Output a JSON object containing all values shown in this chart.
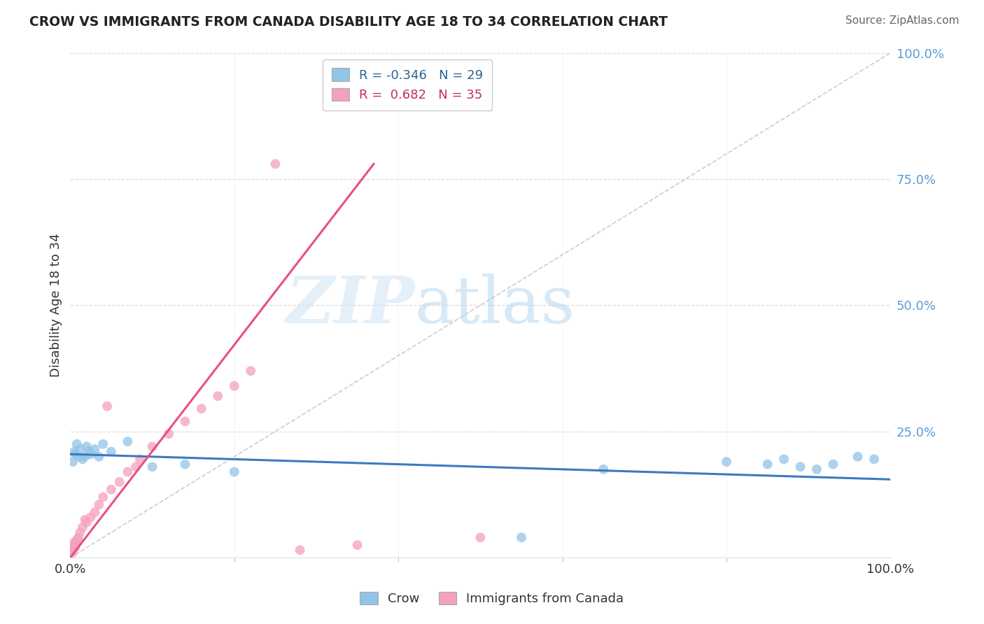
{
  "title": "CROW VS IMMIGRANTS FROM CANADA DISABILITY AGE 18 TO 34 CORRELATION CHART",
  "source": "Source: ZipAtlas.com",
  "ylabel": "Disability Age 18 to 34",
  "legend_crow_R": "-0.346",
  "legend_crow_N": "29",
  "legend_canada_R": "0.682",
  "legend_canada_N": "35",
  "watermark_zip": "ZIP",
  "watermark_atlas": "atlas",
  "background_color": "#ffffff",
  "crow_color": "#91c4e8",
  "canada_color": "#f5a0c0",
  "crow_line_color": "#3a7abf",
  "canada_line_color": "#e85080",
  "diagonal_line_color": "#cccccc",
  "grid_color": "#dddddd",
  "right_tick_color": "#5b9bd5",
  "xlim": [
    0,
    100
  ],
  "ylim": [
    0,
    100
  ],
  "x_tick_labels": [
    "0.0%",
    "100.0%"
  ],
  "x_ticks": [
    0,
    100
  ],
  "right_y_ticks": [
    0,
    25,
    50,
    75,
    100
  ],
  "right_y_labels": [
    "",
    "25.0%",
    "50.0%",
    "75.0%",
    "100.0%"
  ],
  "crow_x": [
    0.3,
    0.5,
    0.6,
    0.8,
    1.0,
    1.2,
    1.5,
    1.8,
    2.0,
    2.3,
    2.5,
    3.0,
    3.5,
    4.0,
    5.0,
    7.0,
    10.0,
    14.0,
    20.0,
    55.0,
    65.0,
    80.0,
    85.0,
    87.0,
    89.0,
    91.0,
    93.0,
    96.0,
    98.0
  ],
  "crow_y": [
    19.0,
    21.0,
    20.5,
    22.5,
    20.0,
    21.5,
    19.5,
    20.0,
    22.0,
    21.0,
    20.5,
    21.5,
    20.0,
    22.5,
    21.0,
    23.0,
    18.0,
    18.5,
    17.0,
    4.0,
    17.5,
    19.0,
    18.5,
    19.5,
    18.0,
    17.5,
    18.5,
    20.0,
    19.5
  ],
  "canada_x": [
    0.1,
    0.2,
    0.3,
    0.4,
    0.5,
    0.6,
    0.8,
    1.0,
    1.2,
    1.5,
    2.0,
    2.5,
    3.0,
    3.5,
    4.0,
    5.0,
    6.0,
    7.0,
    8.5,
    10.0,
    12.0,
    14.0,
    16.0,
    18.0,
    20.0,
    22.0,
    25.0,
    28.0,
    35.0,
    50.0,
    0.3,
    0.7,
    1.8,
    4.5,
    8.0
  ],
  "canada_y": [
    1.0,
    1.5,
    2.0,
    2.5,
    3.0,
    2.0,
    3.5,
    4.0,
    5.0,
    6.0,
    7.0,
    8.0,
    9.0,
    10.5,
    12.0,
    13.5,
    15.0,
    17.0,
    19.5,
    22.0,
    24.5,
    27.0,
    29.5,
    32.0,
    34.0,
    37.0,
    78.0,
    1.5,
    2.5,
    4.0,
    1.0,
    3.0,
    7.5,
    30.0,
    18.0
  ],
  "crow_line_x": [
    0,
    100
  ],
  "crow_line_y": [
    20.5,
    15.5
  ],
  "canada_line_x": [
    0,
    37
  ],
  "canada_line_y": [
    0,
    78
  ],
  "diag_line_x": [
    0,
    100
  ],
  "diag_line_y": [
    0,
    100
  ]
}
